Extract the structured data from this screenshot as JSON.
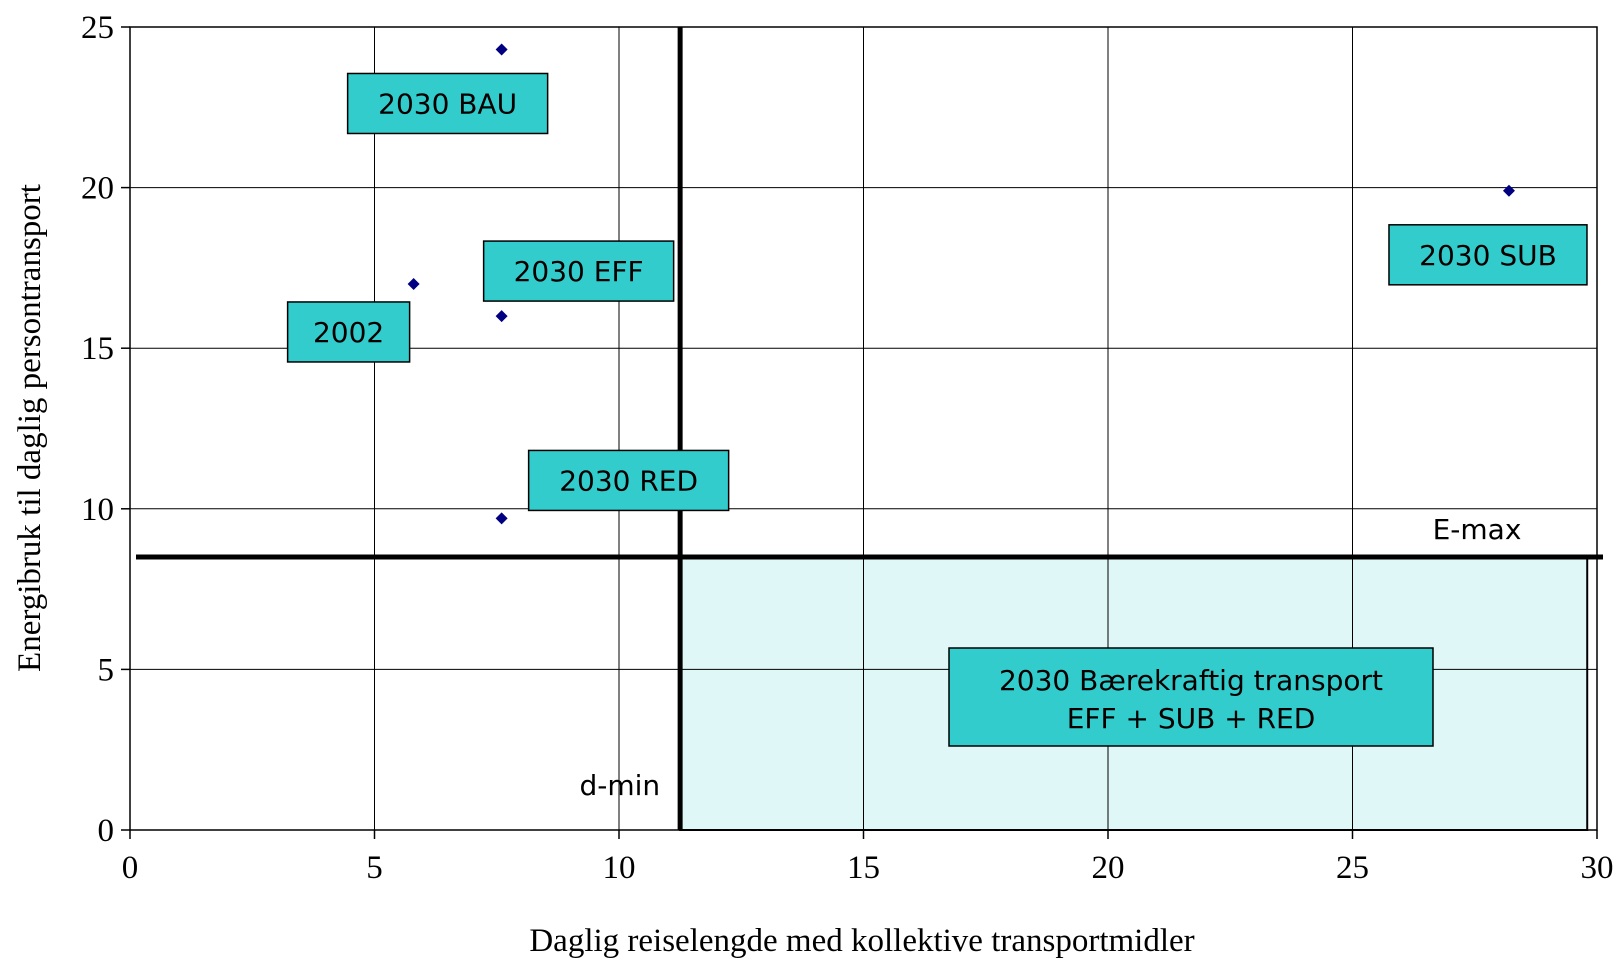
{
  "chart_data": {
    "type": "scatter",
    "title": "",
    "xlabel": "Daglig reiselengde med kollektive transportmidler",
    "ylabel": "Energibruk til daglig persontransport",
    "xlim": [
      0,
      30
    ],
    "ylim": [
      0,
      25
    ],
    "xticks": [
      "0",
      "5",
      "10",
      "15",
      "20",
      "25",
      "30"
    ],
    "yticks": [
      "0",
      "5",
      "10",
      "15",
      "20",
      "25"
    ],
    "grid": true,
    "colors": {
      "marker": "#000080",
      "label_box": "#33cccc",
      "region_fill": "#e0f7f7",
      "lines": "#000000"
    },
    "points": [
      {
        "label": "2002",
        "x": 5.8,
        "y": 17.0
      },
      {
        "label": "2030 BAU",
        "x": 7.6,
        "y": 24.3
      },
      {
        "label": "2030 EFF",
        "x": 7.6,
        "y": 16.0
      },
      {
        "label": "2030 RED",
        "x": 7.6,
        "y": 9.7
      },
      {
        "label": "2030 SUB",
        "x": 28.2,
        "y": 19.9
      }
    ],
    "thresholds": {
      "d_min": {
        "label": "d-min",
        "x": 11.25
      },
      "e_max": {
        "label": "E-max",
        "y": 8.5
      }
    },
    "region": {
      "x": [
        11.25,
        29.8
      ],
      "y": [
        0,
        8.5
      ],
      "label_lines": [
        "2030 Bærekraftig transport",
        "EFF + SUB + RED"
      ]
    }
  }
}
